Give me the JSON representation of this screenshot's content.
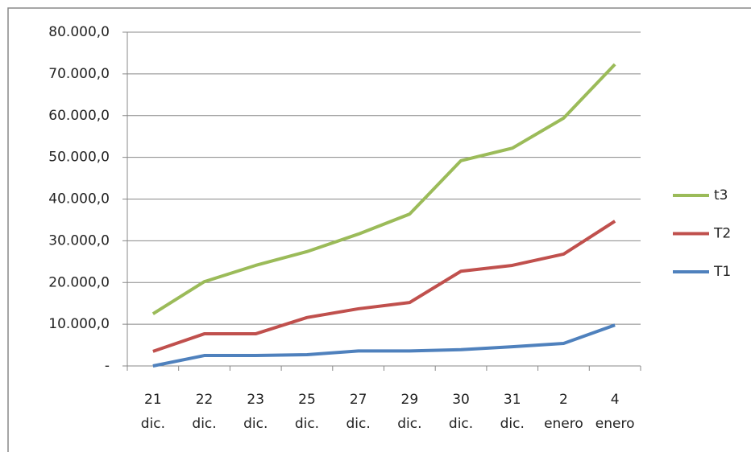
{
  "chart_data": {
    "type": "line",
    "categories": [
      "21 dic.",
      "22 dic.",
      "23 dic.",
      "25 dic.",
      "27 dic.",
      "29 dic.",
      "30 dic.",
      "31 dic.",
      "2 enero",
      "4 enero"
    ],
    "series": [
      {
        "name": "t3",
        "color": "#9bbb59",
        "values": [
          12500,
          20200,
          24100,
          27400,
          31600,
          36400,
          49200,
          52200,
          59400,
          72300
        ]
      },
      {
        "name": "T2",
        "color": "#c0504d",
        "values": [
          3500,
          7700,
          7700,
          11600,
          13700,
          15200,
          22700,
          24100,
          26800,
          34700
        ]
      },
      {
        "name": "T1",
        "color": "#4f81bd",
        "values": [
          0,
          2500,
          2500,
          2700,
          3600,
          3600,
          3900,
          4600,
          5400,
          9800
        ]
      }
    ],
    "ylim": [
      0,
      80000
    ],
    "yticks": [
      {
        "value": 0,
        "label": "-"
      },
      {
        "value": 10000,
        "label": "10.000,0"
      },
      {
        "value": 20000,
        "label": "20.000,0"
      },
      {
        "value": 30000,
        "label": "30.000,0"
      },
      {
        "value": 40000,
        "label": "40.000,0"
      },
      {
        "value": 50000,
        "label": "50.000,0"
      },
      {
        "value": 60000,
        "label": "60.000,0"
      },
      {
        "value": 70000,
        "label": "70.000,0"
      },
      {
        "value": 80000,
        "label": "80.000,0"
      }
    ],
    "grid": true,
    "legend": "right"
  }
}
